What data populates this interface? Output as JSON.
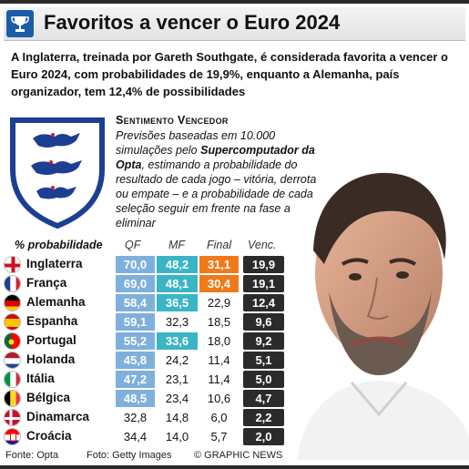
{
  "header": {
    "title": "Favoritos a vencer o Euro 2024",
    "icon": "trophy-icon",
    "colors": {
      "bar": "#2a2a2a",
      "icon_bg": "#1d5da8"
    }
  },
  "intro": "A Inglaterra, treinada por Gareth Southgate, é considerada favorita a vencer o Euro 2024, com probabilidades de 19,9%, enquanto a Alemanha, país organizador, tem 12,4% de possibilidades",
  "subhead": "Sentimento Vencedor",
  "note": {
    "before": "Previsões baseadas em 10.000 simulações pelo ",
    "bold": "Supercomputador da Opta",
    "after": ", estimando a probabilidade do resultado de cada jogo – vitória, derrota ou empate – e a probabilidade de cada seleção seguir em frente na fase a eliminar"
  },
  "chart_data": {
    "type": "table",
    "columns": [
      "% probabilidade",
      "QF",
      "MF",
      "Final",
      "Venc."
    ],
    "rows": [
      {
        "team": "Inglaterra",
        "flag": "england-flag-icon",
        "qf": "70,0",
        "mf": "48,2",
        "final": "31,1",
        "venc": "19,9"
      },
      {
        "team": "França",
        "flag": "france-flag-icon",
        "qf": "69,0",
        "mf": "48,1",
        "final": "30,4",
        "venc": "19,1"
      },
      {
        "team": "Alemanha",
        "flag": "germany-flag-icon",
        "qf": "58,4",
        "mf": "36,5",
        "final": "22,9",
        "venc": "12,4"
      },
      {
        "team": "Espanha",
        "flag": "spain-flag-icon",
        "qf": "59,1",
        "mf": "32,3",
        "final": "18,5",
        "venc": "9,6"
      },
      {
        "team": "Portugal",
        "flag": "portugal-flag-icon",
        "qf": "55,2",
        "mf": "33,6",
        "final": "18,0",
        "venc": "9,2"
      },
      {
        "team": "Holanda",
        "flag": "netherlands-flag-icon",
        "qf": "45,8",
        "mf": "24,2",
        "final": "11,4",
        "venc": "5,1"
      },
      {
        "team": "Itália",
        "flag": "italy-flag-icon",
        "qf": "47,2",
        "mf": "23,1",
        "final": "11,4",
        "venc": "5,0"
      },
      {
        "team": "Bélgica",
        "flag": "belgium-flag-icon",
        "qf": "48,5",
        "mf": "23,4",
        "final": "10,6",
        "venc": "4,7"
      },
      {
        "team": "Dinamarca",
        "flag": "denmark-flag-icon",
        "qf": "32,8",
        "mf": "14,8",
        "final": "6,0",
        "venc": "2,2"
      },
      {
        "team": "Croácia",
        "flag": "croatia-flag-icon",
        "qf": "34,4",
        "mf": "14,0",
        "final": "5,7",
        "venc": "2,0"
      }
    ],
    "highlight_colors": {
      "qf": "#7fb0dc",
      "mf": "#3bb5c6",
      "final": "#f07a1a",
      "venc": "#2b2b2b"
    }
  },
  "footer": {
    "source": "Fonte: Opta",
    "photo": "Foto: Getty Images",
    "credit": "© GRAPHIC NEWS"
  }
}
